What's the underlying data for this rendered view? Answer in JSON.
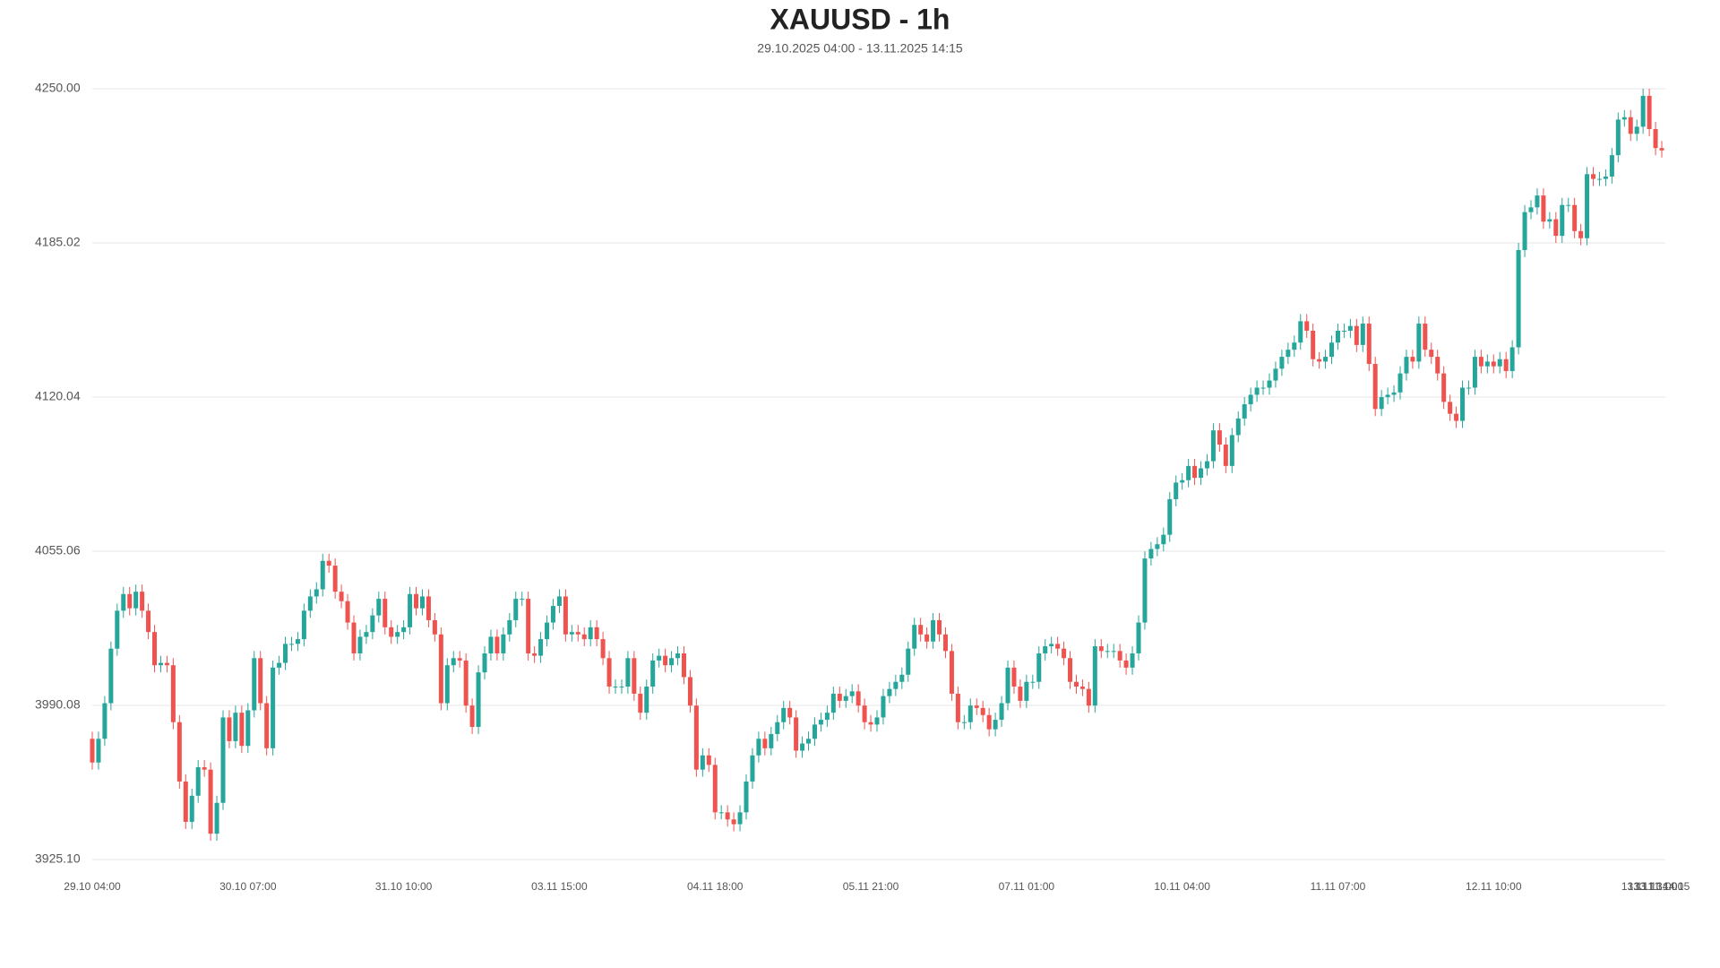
{
  "chart_data": {
    "type": "candlestick",
    "title": "XAUUSD - 1h",
    "subtitle": "29.10.2025 04:00 - 13.11.2025 14:15",
    "up_color": "#26a69a",
    "down_color": "#ef5350",
    "grid": true,
    "ylim": [
      3925.1,
      4250
    ],
    "yticks": [
      {
        "value": 3925.1,
        "label": "3925.10"
      },
      3990.08,
      4055.06,
      4120.04,
      4185.02,
      {
        "value": 4250,
        "label": "4250.00"
      }
    ],
    "categories": [
      "29.10 04:00",
      null,
      null,
      null,
      null,
      null,
      null,
      null,
      null,
      null,
      null,
      null,
      null,
      null,
      null,
      null,
      null,
      null,
      null,
      null,
      null,
      null,
      null,
      null,
      null,
      "30.10 07:00",
      null,
      null,
      null,
      null,
      null,
      null,
      null,
      null,
      null,
      null,
      null,
      null,
      null,
      null,
      null,
      null,
      null,
      null,
      null,
      null,
      null,
      null,
      null,
      null,
      "31.10 10:00",
      null,
      null,
      null,
      null,
      null,
      null,
      null,
      null,
      null,
      null,
      null,
      null,
      null,
      null,
      null,
      null,
      null,
      null,
      null,
      null,
      null,
      null,
      null,
      null,
      "03.11 15:00",
      null,
      null,
      null,
      null,
      null,
      null,
      null,
      null,
      null,
      null,
      null,
      null,
      null,
      null,
      null,
      null,
      null,
      null,
      null,
      null,
      null,
      null,
      null,
      null,
      "04.11 18:00",
      null,
      null,
      null,
      null,
      null,
      null,
      null,
      null,
      null,
      null,
      null,
      null,
      null,
      null,
      null,
      null,
      null,
      null,
      null,
      null,
      null,
      null,
      null,
      null,
      "05.11 21:00",
      null,
      null,
      null,
      null,
      null,
      null,
      null,
      null,
      null,
      null,
      null,
      null,
      null,
      null,
      null,
      null,
      null,
      null,
      null,
      null,
      null,
      null,
      null,
      null,
      "07.11 01:00",
      null,
      null,
      null,
      null,
      null,
      null,
      null,
      null,
      null,
      null,
      null,
      null,
      null,
      null,
      null,
      null,
      null,
      null,
      null,
      null,
      null,
      null,
      null,
      null,
      "10.11 04:00",
      null,
      null,
      null,
      null,
      null,
      null,
      null,
      null,
      null,
      null,
      null,
      null,
      null,
      null,
      null,
      null,
      null,
      null,
      null,
      null,
      null,
      null,
      null,
      null,
      "11.11 07:00",
      null,
      null,
      null,
      null,
      null,
      null,
      null,
      null,
      null,
      null,
      null,
      null,
      null,
      null,
      null,
      null,
      null,
      null,
      null,
      null,
      null,
      null,
      null,
      null,
      "12.11 10:00",
      null,
      null,
      null,
      null,
      null,
      null,
      null,
      null,
      null,
      null,
      null,
      null,
      null,
      null,
      null,
      null,
      null,
      null,
      null,
      null,
      null,
      null,
      null,
      null,
      "13.11 13:00",
      "13.11 14:00",
      "13.11 14:15"
    ],
    "open": [
      3976,
      3966,
      3976,
      3991,
      4014,
      4030,
      4037,
      4031,
      4038,
      4030,
      4021,
      4007,
      4008,
      4007,
      3983,
      3958,
      3941,
      3952,
      3964,
      3963,
      3936,
      3949,
      3985,
      3975,
      3987,
      3973,
      3988,
      4010,
      3991,
      3972,
      4006,
      4008,
      4016,
      4016,
      4018,
      4030,
      4036,
      4039,
      4051,
      4049,
      4038,
      4034,
      4025,
      4012,
      4019,
      4021,
      4028,
      4035,
      4023,
      4019,
      4021,
      4023,
      4037,
      4031,
      4036,
      4026,
      4020,
      3991,
      4007,
      4010,
      4009,
      3990,
      3981,
      4004,
      4012,
      4019,
      4012,
      4020,
      4026,
      4035,
      4035,
      4012,
      4011,
      4018,
      4025,
      4032,
      4036,
      4020,
      4021,
      4020,
      4018,
      4023,
      4018,
      4010,
      3998,
      3998,
      3998,
      4010,
      3995,
      3987,
      3998,
      4009,
      4011,
      4007,
      4010,
      4012,
      4002,
      3990,
      3963,
      3969,
      3965,
      3945,
      3945,
      3942,
      3940,
      3945,
      3958,
      3969,
      3976,
      3972,
      3978,
      3983,
      3989,
      3985,
      3971,
      3974,
      3976,
      3982,
      3984,
      3987,
      3995,
      3992,
      3994,
      3996,
      3990,
      3983,
      3982,
      3985,
      3994,
      3997,
      4000,
      4003,
      4014,
      4024,
      4020,
      4017,
      4026,
      4020,
      4013,
      3995,
      3983,
      3983,
      3990,
      3989,
      3986,
      3980,
      3984,
      3991,
      4006,
      3998,
      3992,
      4000,
      4000,
      4012,
      4015,
      4016,
      4014,
      4010,
      4000,
      3998,
      3997,
      3990,
      4015,
      4013,
      4013,
      4013,
      4009,
      4006,
      4012,
      4025,
      4052,
      4056,
      4058,
      4062,
      4077,
      4084,
      4085,
      4091,
      4086,
      4090,
      4093,
      4106,
      4100,
      4091,
      4104,
      4111,
      4117,
      4121,
      4124,
      4124,
      4127,
      4132,
      4137,
      4140,
      4143,
      4152,
      4148,
      4136,
      4135,
      4137,
      4143,
      4148,
      4148,
      4150,
      4142,
      4151,
      4134,
      4115,
      4120,
      4121,
      4122,
      4130,
      4137,
      4135,
      4151,
      4140,
      4137,
      4130,
      4118,
      4113,
      4110,
      4124,
      4124,
      4137,
      4133,
      4135,
      4133,
      4136,
      4131,
      4141,
      4182,
      4198,
      4200,
      4205,
      4194,
      4195,
      4188,
      4201,
      4201,
      4190,
      4187,
      4214,
      4212,
      4212,
      4213,
      4222,
      4237,
      4238,
      4231,
      4234,
      4247,
      4233,
      4225
    ],
    "high": [
      3979,
      3979,
      3994,
      4017,
      4033,
      4040,
      4040,
      4041,
      4041,
      4033,
      4024,
      4011,
      4011,
      4010,
      3986,
      3961,
      3955,
      3967,
      3967,
      3966,
      3952,
      3988,
      3988,
      3990,
      3990,
      3991,
      4013,
      4013,
      3994,
      4009,
      4011,
      4019,
      4019,
      4021,
      4033,
      4039,
      4042,
      4054,
      4054,
      4052,
      4041,
      4037,
      4028,
      4022,
      4024,
      4031,
      4038,
      4038,
      4026,
      4024,
      4026,
      4040,
      4040,
      4039,
      4039,
      4029,
      4023,
      4010,
      4013,
      4013,
      4012,
      3993,
      4007,
      4015,
      4022,
      4022,
      4023,
      4029,
      4038,
      4038,
      4038,
      4015,
      4021,
      4028,
      4035,
      4039,
      4039,
      4024,
      4024,
      4023,
      4026,
      4026,
      4021,
      4013,
      4001,
      4001,
      4013,
      4013,
      3998,
      4001,
      4012,
      4014,
      4014,
      4013,
      4015,
      4015,
      4005,
      3993,
      3972,
      3972,
      3968,
      3948,
      3948,
      3945,
      3948,
      3961,
      3972,
      3979,
      3979,
      3981,
      3986,
      3992,
      3992,
      3988,
      3977,
      3979,
      3985,
      3987,
      3990,
      3998,
      3998,
      3997,
      3999,
      3999,
      3993,
      3986,
      3988,
      3997,
      4000,
      4003,
      4006,
      4017,
      4027,
      4027,
      4023,
      4029,
      4029,
      4023,
      4016,
      3998,
      3986,
      3993,
      3993,
      3992,
      3989,
      3987,
      3994,
      4009,
      4009,
      4001,
      4003,
      4003,
      4015,
      4018,
      4019,
      4019,
      4017,
      4013,
      4003,
      4001,
      4000,
      4018,
      4018,
      4016,
      4016,
      4016,
      4012,
      4015,
      4028,
      4055,
      4059,
      4061,
      4065,
      4080,
      4087,
      4088,
      4094,
      4094,
      4093,
      4096,
      4109,
      4109,
      4103,
      4107,
      4114,
      4120,
      4124,
      4127,
      4127,
      4130,
      4135,
      4140,
      4143,
      4146,
      4155,
      4155,
      4151,
      4139,
      4140,
      4146,
      4151,
      4151,
      4153,
      4153,
      4154,
      4154,
      4137,
      4123,
      4124,
      4125,
      4133,
      4140,
      4140,
      4154,
      4154,
      4143,
      4140,
      4133,
      4121,
      4116,
      4127,
      4127,
      4140,
      4140,
      4138,
      4138,
      4139,
      4139,
      4144,
      4185,
      4201,
      4203,
      4208,
      4208,
      4198,
      4198,
      4204,
      4204,
      4204,
      4193,
      4217,
      4217,
      4215,
      4216,
      4225,
      4240,
      4241,
      4241,
      4237,
      4250,
      4250,
      4236,
      4228
    ],
    "low": [
      3963,
      3963,
      3973,
      3988,
      4011,
      4027,
      4028,
      4028,
      4027,
      4018,
      4004,
      4004,
      4004,
      3980,
      3955,
      3938,
      3938,
      3949,
      3960,
      3933,
      3933,
      3946,
      3972,
      3972,
      3970,
      3970,
      3985,
      3988,
      3969,
      3969,
      4003,
      4005,
      4013,
      4013,
      4015,
      4027,
      4033,
      4036,
      4046,
      4035,
      4031,
      4022,
      4009,
      4009,
      4016,
      4018,
      4025,
      4020,
      4016,
      4016,
      4018,
      4020,
      4028,
      4028,
      4023,
      4017,
      3988,
      3988,
      4004,
      4006,
      3987,
      3978,
      3978,
      4001,
      4009,
      4009,
      4009,
      4017,
      4023,
      4032,
      4009,
      4008,
      4008,
      4015,
      4022,
      4029,
      4017,
      4017,
      4017,
      4015,
      4015,
      4015,
      4007,
      3995,
      3995,
      3995,
      3995,
      3992,
      3984,
      3984,
      3995,
      4006,
      4004,
      4004,
      4007,
      3999,
      3987,
      3960,
      3960,
      3962,
      3942,
      3942,
      3939,
      3937,
      3937,
      3942,
      3955,
      3966,
      3969,
      3969,
      3975,
      3980,
      3982,
      3968,
      3968,
      3971,
      3973,
      3979,
      3981,
      3984,
      3989,
      3989,
      3991,
      3987,
      3980,
      3979,
      3979,
      3982,
      3991,
      3994,
      3997,
      4000,
      4011,
      4017,
      4014,
      4014,
      4017,
      4010,
      3992,
      3980,
      3980,
      3980,
      3986,
      3983,
      3977,
      3977,
      3981,
      3988,
      3995,
      3989,
      3989,
      3997,
      3997,
      4009,
      4012,
      4011,
      4007,
      3997,
      3995,
      3994,
      3987,
      3987,
      4010,
      4010,
      4010,
      4006,
      4003,
      4003,
      4009,
      4022,
      4049,
      4053,
      4055,
      4059,
      4074,
      4081,
      4082,
      4083,
      4083,
      4087,
      4090,
      4097,
      4088,
      4088,
      4101,
      4108,
      4114,
      4118,
      4121,
      4121,
      4124,
      4129,
      4134,
      4137,
      4140,
      4145,
      4133,
      4132,
      4132,
      4134,
      4140,
      4145,
      4145,
      4139,
      4139,
      4131,
      4112,
      4112,
      4117,
      4118,
      4119,
      4127,
      4132,
      4132,
      4137,
      4134,
      4127,
      4115,
      4110,
      4107,
      4107,
      4121,
      4121,
      4130,
      4130,
      4130,
      4130,
      4128,
      4128,
      4138,
      4179,
      4195,
      4197,
      4191,
      4191,
      4185,
      4185,
      4198,
      4187,
      4184,
      4184,
      4209,
      4209,
      4209,
      4210,
      4219,
      4234,
      4228,
      4228,
      4231,
      4230,
      4222,
      4221
    ],
    "close": [
      3966,
      3976,
      3991,
      4014,
      4030,
      4037,
      4031,
      4038,
      4030,
      4021,
      4007,
      4008,
      4007,
      3983,
      3958,
      3941,
      3952,
      3964,
      3963,
      3936,
      3949,
      3985,
      3975,
      3987,
      3973,
      3988,
      4010,
      3991,
      3972,
      4006,
      4008,
      4016,
      4016,
      4018,
      4030,
      4036,
      4039,
      4051,
      4049,
      4038,
      4034,
      4025,
      4012,
      4019,
      4021,
      4028,
      4035,
      4023,
      4019,
      4021,
      4023,
      4037,
      4031,
      4036,
      4026,
      4020,
      3991,
      4007,
      4010,
      4009,
      3990,
      3981,
      4004,
      4012,
      4019,
      4012,
      4020,
      4026,
      4035,
      4035,
      4012,
      4011,
      4018,
      4025,
      4032,
      4036,
      4020,
      4021,
      4020,
      4018,
      4023,
      4018,
      4010,
      3998,
      3998,
      3998,
      4010,
      3995,
      3987,
      3998,
      4009,
      4011,
      4007,
      4010,
      4012,
      4002,
      3990,
      3963,
      3969,
      3965,
      3945,
      3945,
      3942,
      3940,
      3945,
      3958,
      3969,
      3976,
      3972,
      3978,
      3983,
      3989,
      3985,
      3971,
      3974,
      3976,
      3982,
      3984,
      3987,
      3995,
      3992,
      3994,
      3996,
      3990,
      3983,
      3982,
      3985,
      3994,
      3997,
      4000,
      4003,
      4014,
      4024,
      4020,
      4017,
      4026,
      4020,
      4013,
      3995,
      3983,
      3983,
      3990,
      3989,
      3986,
      3980,
      3984,
      3991,
      4006,
      3998,
      3992,
      4000,
      4000,
      4012,
      4015,
      4016,
      4014,
      4010,
      4000,
      3998,
      3997,
      3990,
      4015,
      4013,
      4013,
      4013,
      4009,
      4006,
      4012,
      4025,
      4052,
      4056,
      4058,
      4062,
      4077,
      4084,
      4085,
      4091,
      4086,
      4090,
      4093,
      4106,
      4100,
      4091,
      4104,
      4111,
      4117,
      4121,
      4124,
      4124,
      4127,
      4132,
      4137,
      4140,
      4143,
      4152,
      4148,
      4136,
      4135,
      4137,
      4143,
      4148,
      4148,
      4150,
      4142,
      4151,
      4134,
      4115,
      4120,
      4121,
      4122,
      4130,
      4137,
      4135,
      4151,
      4140,
      4137,
      4130,
      4118,
      4113,
      4110,
      4124,
      4124,
      4137,
      4133,
      4135,
      4133,
      4136,
      4131,
      4141,
      4182,
      4198,
      4200,
      4205,
      4194,
      4195,
      4188,
      4201,
      4201,
      4190,
      4187,
      4214,
      4212,
      4212,
      4213,
      4222,
      4237,
      4238,
      4231,
      4234,
      4247,
      4233,
      4225,
      4224
    ]
  }
}
